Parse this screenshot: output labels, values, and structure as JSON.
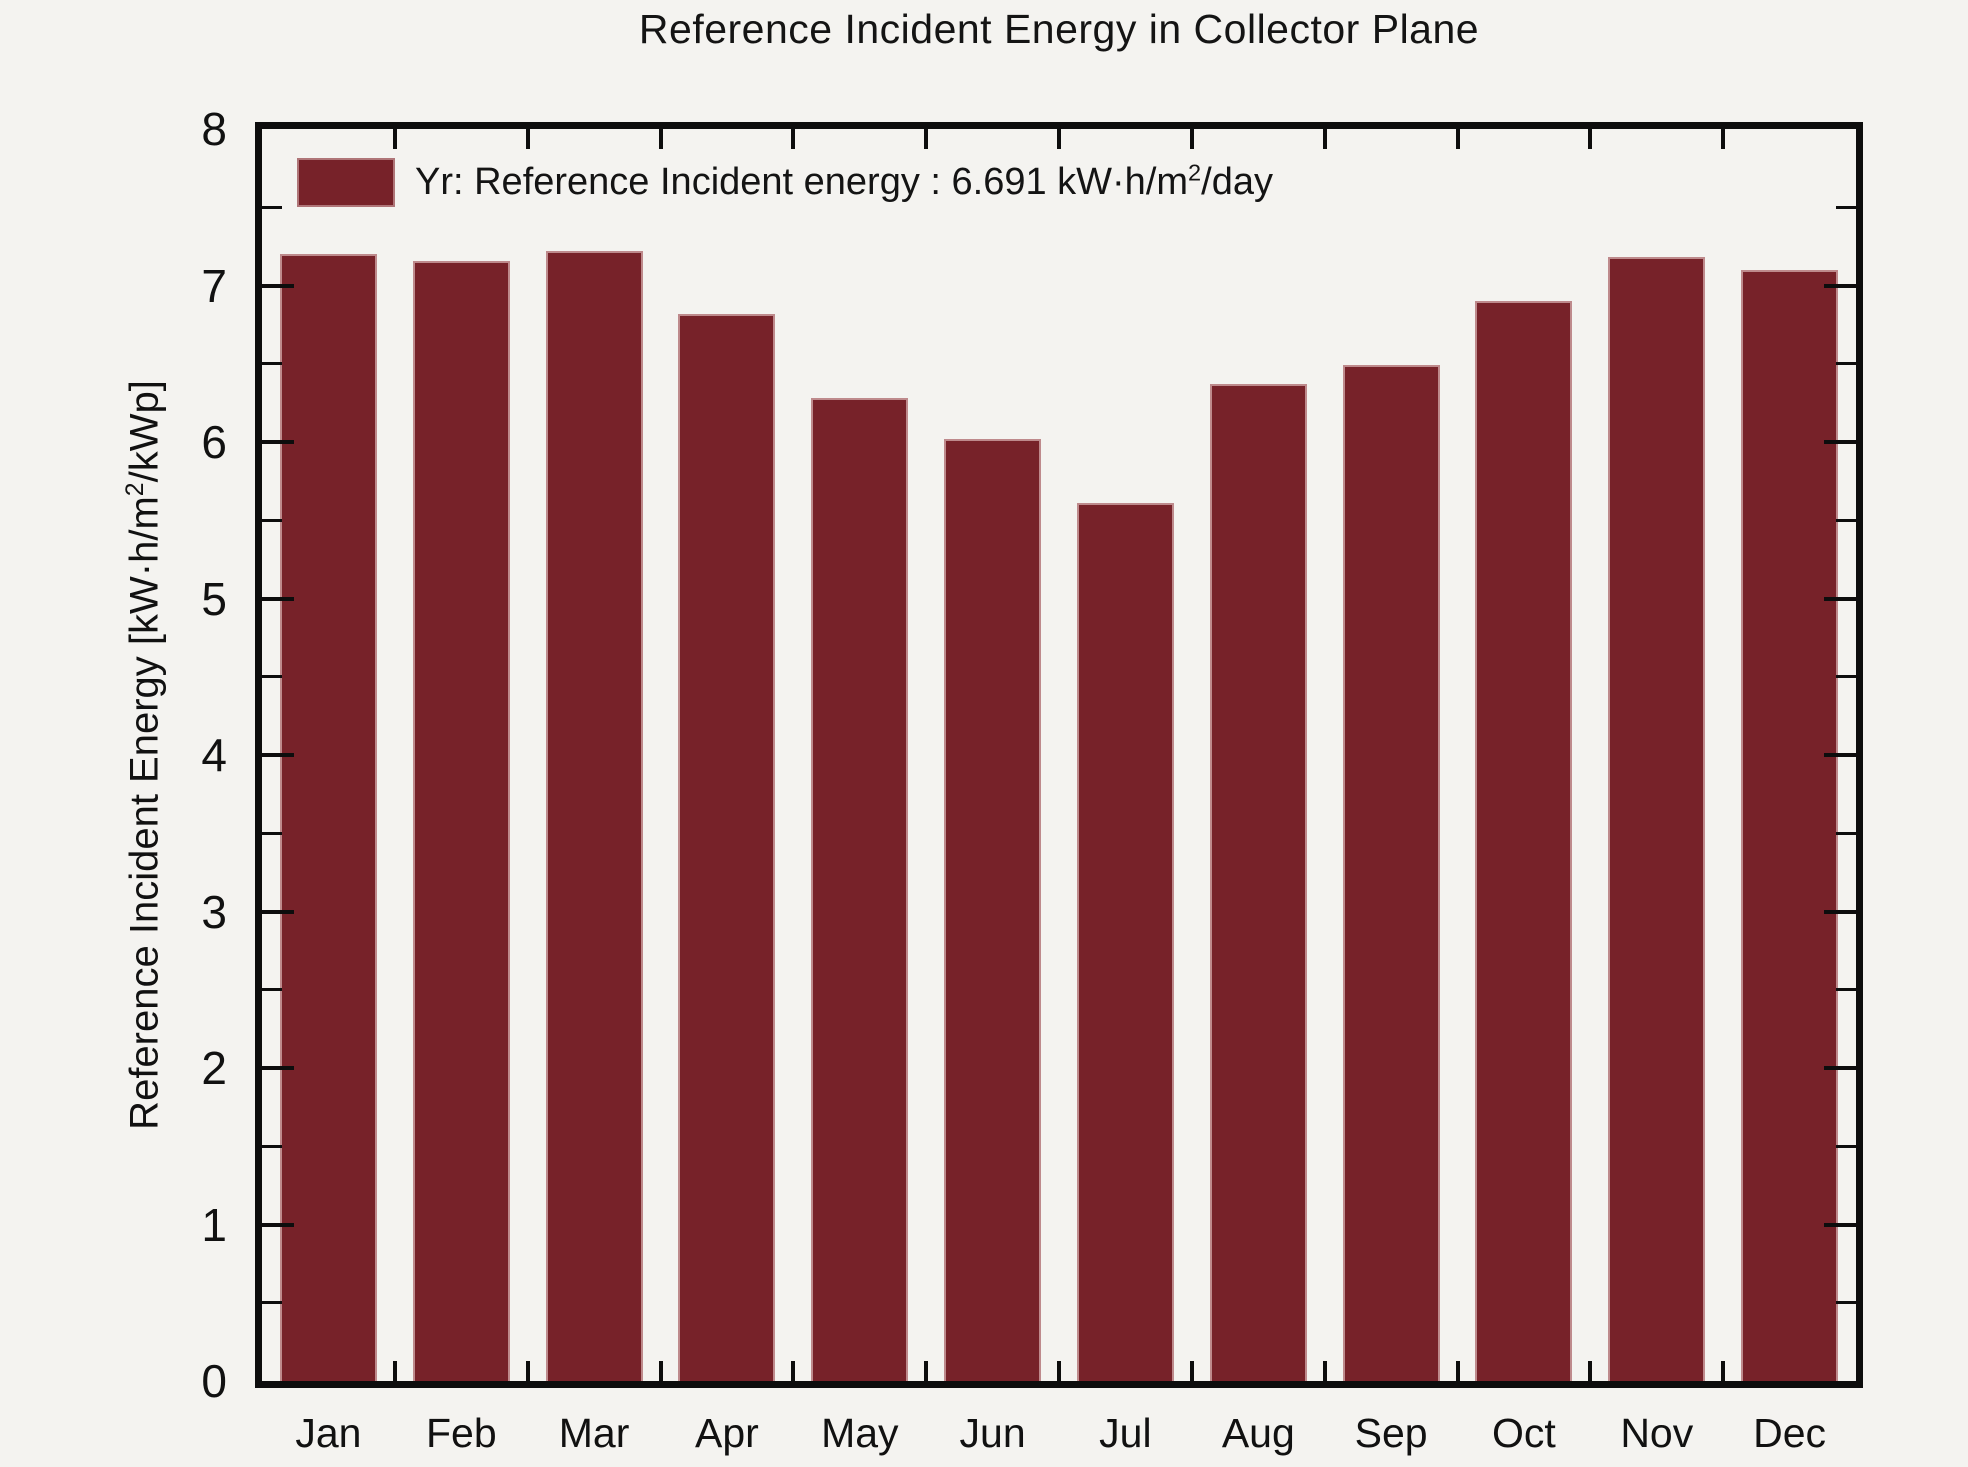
{
  "title": "Reference Incident Energy in Collector Plane",
  "legend": {
    "swatch_color": "#772229",
    "text_prefix": "Yr: Reference Incident energy : 6.691 kW·h/m",
    "text_sup": "2",
    "text_suffix": "/day"
  },
  "y_axis": {
    "label_prefix": "Reference Incident Energy [kW·h/m",
    "label_sup": "2",
    "label_suffix": "/kWp]",
    "tick_labels": [
      "0",
      "1",
      "2",
      "3",
      "4",
      "5",
      "6",
      "7",
      "8"
    ]
  },
  "chart_data": {
    "type": "bar",
    "title": "Reference Incident Energy in Collector Plane",
    "categories": [
      "Jan",
      "Feb",
      "Mar",
      "Apr",
      "May",
      "Jun",
      "Jul",
      "Aug",
      "Sep",
      "Oct",
      "Nov",
      "Dec"
    ],
    "values": [
      7.2,
      7.16,
      7.22,
      6.82,
      6.28,
      6.02,
      5.61,
      6.37,
      6.49,
      6.9,
      7.18,
      7.1
    ],
    "series_name": "Yr: Reference Incident energy",
    "annual_average_label": "6.691",
    "annual_average_unit": "kW·h/m²/day",
    "xlabel": "",
    "ylabel": "Reference Incident Energy [kW·h/m²/kWp]",
    "ylim": [
      0,
      8
    ],
    "y_major_step": 1,
    "y_minor_step": 0.5,
    "grid": false,
    "legend_position": "top-left",
    "bar_color": "#772229"
  }
}
